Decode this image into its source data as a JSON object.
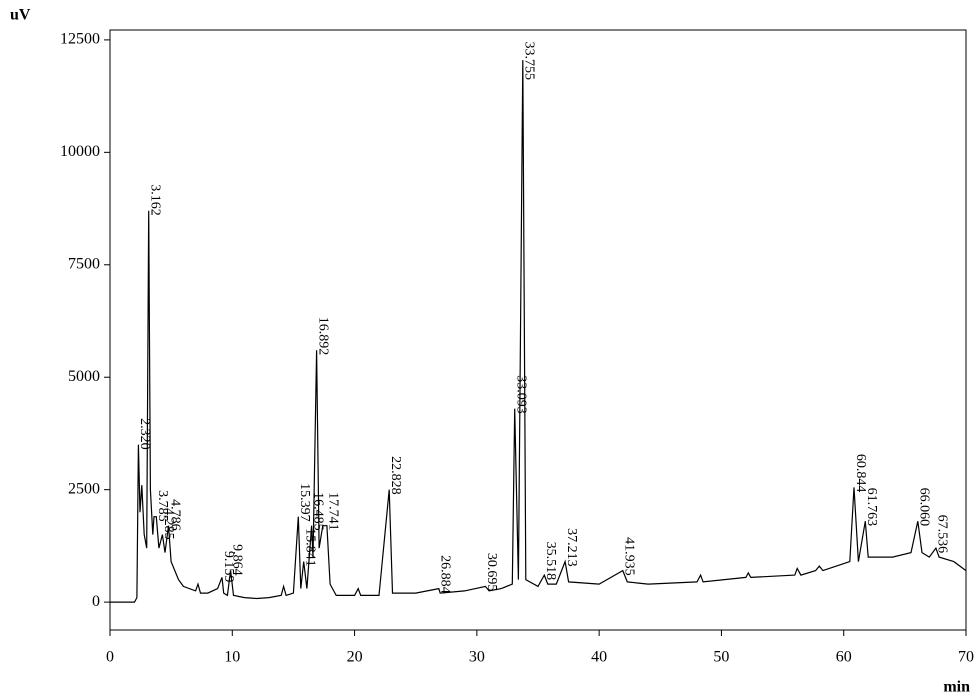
{
  "chart_data": {
    "type": "line",
    "y_label": "uV",
    "x_label": "min",
    "color": "#000000",
    "x": [
      0,
      2.0,
      2.2,
      2.32,
      2.45,
      2.6,
      2.8,
      3.0,
      3.162,
      3.3,
      3.5,
      3.6,
      3.785,
      4.0,
      4.285,
      4.5,
      4.786,
      5.0,
      5.3,
      5.6,
      6,
      7,
      7.2,
      7.4,
      8,
      8.8,
      9.159,
      9.3,
      9.6,
      9.864,
      10.1,
      11,
      12,
      13,
      14,
      14.2,
      14.4,
      15,
      15.397,
      15.6,
      15.841,
      16.1,
      16.485,
      16.6,
      16.892,
      17.1,
      17.4,
      17.741,
      18.0,
      18.5,
      20,
      20.3,
      20.5,
      22,
      22.828,
      23.1,
      25,
      26.884,
      27,
      29,
      30.695,
      31,
      32,
      32.9,
      33.093,
      33.4,
      33.755,
      34.0,
      35,
      35.518,
      35.8,
      36.5,
      37.213,
      37.5,
      40,
      41.935,
      42.3,
      44,
      48,
      48.3,
      48.5,
      52,
      52.2,
      52.4,
      56,
      56.2,
      56.5,
      57.7,
      58,
      58.3,
      60.5,
      60.844,
      61.2,
      61.763,
      62,
      64,
      65.5,
      66.06,
      66.4,
      67,
      67.536,
      67.8,
      69,
      70
    ],
    "values": [
      0,
      0,
      100,
      3500,
      2000,
      2600,
      1500,
      1200,
      8700,
      2500,
      1500,
      1900,
      1900,
      1200,
      1500,
      1100,
      1700,
      900,
      700,
      500,
      350,
      250,
      400,
      200,
      200,
      300,
      550,
      200,
      150,
      700,
      150,
      100,
      80,
      100,
      150,
      350,
      150,
      200,
      1900,
      300,
      900,
      300,
      1700,
      1000,
      5600,
      1200,
      1700,
      1700,
      400,
      150,
      150,
      300,
      150,
      150,
      2500,
      200,
      200,
      300,
      200,
      250,
      350,
      250,
      300,
      400,
      4300,
      500,
      12050,
      500,
      350,
      600,
      400,
      400,
      900,
      450,
      400,
      700,
      450,
      400,
      450,
      600,
      450,
      550,
      650,
      550,
      600,
      750,
      600,
      700,
      800,
      700,
      900,
      2550,
      900,
      1800,
      1000,
      1000,
      1100,
      1800,
      1100,
      1000,
      1200,
      1000,
      900,
      700
    ],
    "peak_labels": [
      {
        "value": 2.32,
        "label": "2.320"
      },
      {
        "value": 3.162,
        "label": "3.162"
      },
      {
        "value": 3.785,
        "label": "3.785"
      },
      {
        "value": 4.285,
        "label": "4.285"
      },
      {
        "value": 4.786,
        "label": "4.786"
      },
      {
        "value": 9.159,
        "label": "9.159"
      },
      {
        "value": 9.864,
        "label": "9.864"
      },
      {
        "value": 15.397,
        "label": "15.397"
      },
      {
        "value": 15.841,
        "label": "15.841"
      },
      {
        "value": 16.485,
        "label": "16.485"
      },
      {
        "value": 16.892,
        "label": "16.892"
      },
      {
        "value": 17.741,
        "label": "17.741"
      },
      {
        "value": 22.828,
        "label": "22.828"
      },
      {
        "value": 26.884,
        "label": "26.884"
      },
      {
        "value": 30.695,
        "label": "30.695"
      },
      {
        "value": 33.093,
        "label": "33.093"
      },
      {
        "value": 33.755,
        "label": "33.755"
      },
      {
        "value": 35.518,
        "label": "35.518"
      },
      {
        "value": 37.213,
        "label": "37.213"
      },
      {
        "value": 41.935,
        "label": "41.935"
      },
      {
        "value": 60.844,
        "label": "60.844"
      },
      {
        "value": 61.763,
        "label": "61.763"
      },
      {
        "value": 66.06,
        "label": "66.060"
      },
      {
        "value": 67.536,
        "label": "67.536"
      }
    ],
    "xlim": [
      0,
      70
    ],
    "xticks": [
      0,
      10,
      20,
      30,
      40,
      50,
      60,
      70
    ],
    "ylim": [
      -620,
      12720
    ],
    "yticks": [
      0,
      2500,
      5000,
      7500,
      10000,
      12500
    ]
  }
}
